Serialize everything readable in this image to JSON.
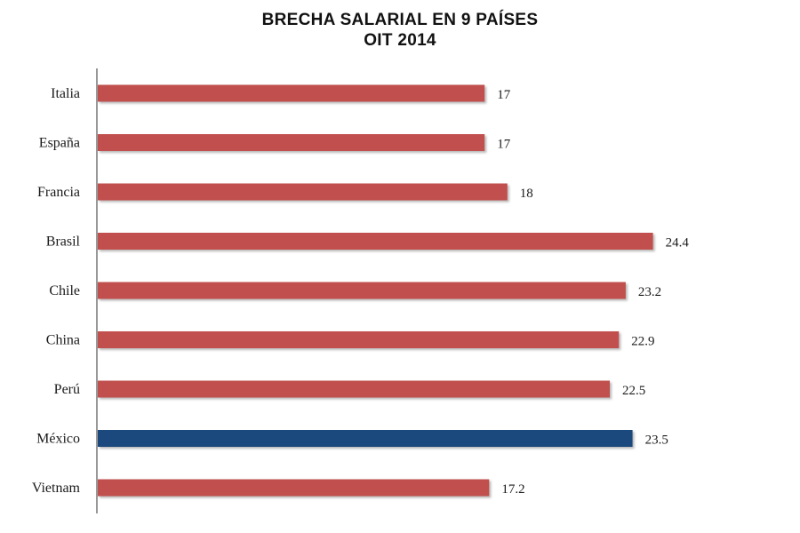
{
  "chart_data": {
    "type": "bar",
    "orientation": "horizontal",
    "title": "BRECHA SALARIAL EN 9 PAÍSES",
    "subtitle": "OIT 2014",
    "categories": [
      "Italia",
      "España",
      "Francia",
      "Brasil",
      "Chile",
      "China",
      "Perú",
      "México",
      "Vietnam"
    ],
    "values": [
      17,
      17,
      18,
      24.4,
      23.2,
      22.9,
      22.5,
      23.5,
      17.2
    ],
    "value_labels": [
      "17",
      "17",
      "18",
      "24.4",
      "23.2",
      "22.9",
      "22.5",
      "23.5",
      "17.2"
    ],
    "highlight_category": "México",
    "xlim": [
      0,
      25
    ],
    "grid": false,
    "legend": "none",
    "colors": {
      "bar": "#c0504d",
      "highlight": "#1f497d",
      "axis": "#555555"
    }
  }
}
